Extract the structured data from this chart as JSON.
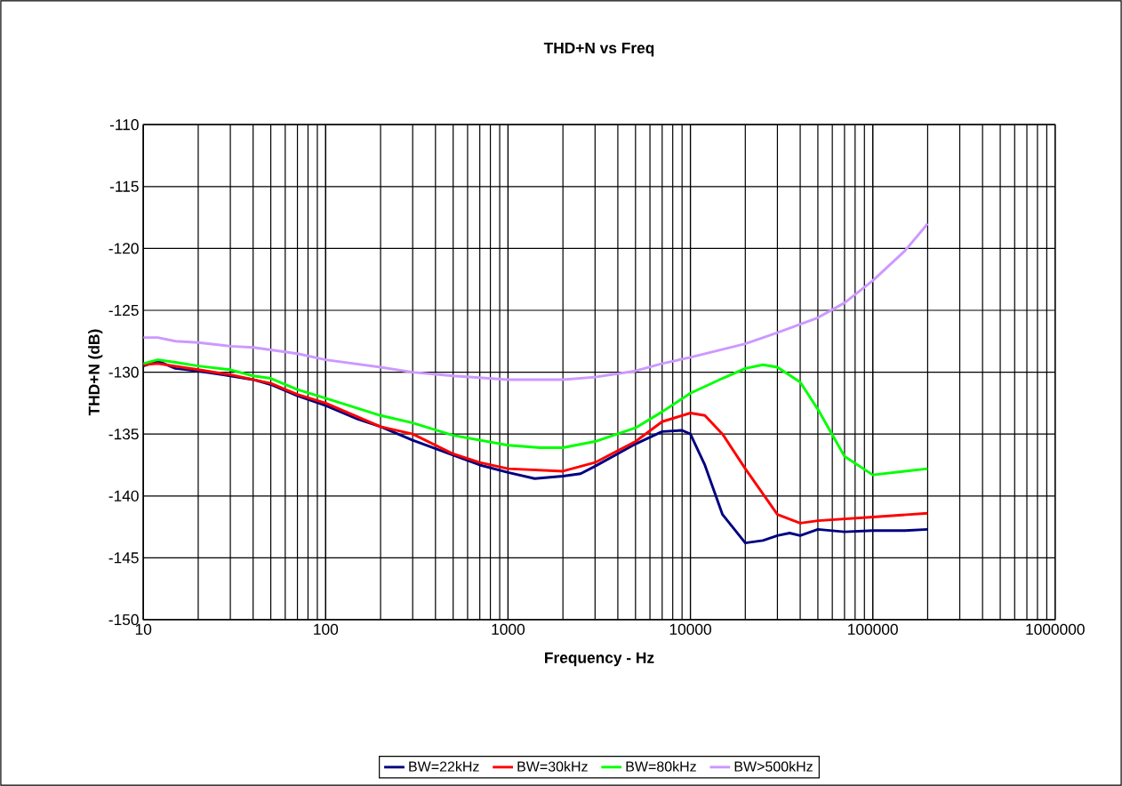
{
  "chart_data": {
    "type": "line",
    "title": "THD+N vs Freq",
    "xlabel": "Frequency  - Hz",
    "ylabel": "THD+N (dB)",
    "log": "x",
    "grid": true,
    "legend": "bottom",
    "xlim": [
      10,
      1000000
    ],
    "xticks": [
      10,
      100,
      1000,
      10000,
      100000,
      1000000
    ],
    "ylim": [
      -150,
      -110
    ],
    "yticks": [
      -150,
      -145,
      -140,
      -135,
      -130,
      -125,
      -120,
      -115,
      -110
    ],
    "series": [
      {
        "name": "BW=22kHz",
        "color": "#000080",
        "x": [
          10,
          12,
          15,
          20,
          30,
          40,
          50,
          70,
          100,
          150,
          200,
          300,
          500,
          700,
          1000,
          1400,
          2000,
          2500,
          3000,
          5000,
          7000,
          9000,
          10000,
          12000,
          15000,
          20000,
          25000,
          30000,
          35000,
          40000,
          50000,
          70000,
          100000,
          150000,
          200000
        ],
        "values": [
          -129.5,
          -129.1,
          -129.7,
          -129.9,
          -130.3,
          -130.6,
          -131.0,
          -131.9,
          -132.7,
          -133.8,
          -134.4,
          -135.5,
          -136.7,
          -137.5,
          -138.1,
          -138.6,
          -138.4,
          -138.2,
          -137.6,
          -135.8,
          -134.8,
          -134.7,
          -135.0,
          -137.5,
          -141.5,
          -143.8,
          -143.6,
          -143.2,
          -143.0,
          -143.2,
          -142.7,
          -142.9,
          -142.8,
          -142.8,
          -142.7
        ]
      },
      {
        "name": "BW=30kHz",
        "color": "#ff0000",
        "x": [
          10,
          12,
          20,
          30,
          50,
          70,
          100,
          200,
          300,
          500,
          700,
          1000,
          2000,
          3000,
          5000,
          7000,
          10000,
          12000,
          15000,
          20000,
          30000,
          40000,
          50000,
          100000,
          200000
        ],
        "values": [
          -129.4,
          -129.3,
          -129.8,
          -130.2,
          -130.9,
          -131.8,
          -132.5,
          -134.4,
          -135.0,
          -136.6,
          -137.3,
          -137.8,
          -138.0,
          -137.3,
          -135.6,
          -134.0,
          -133.3,
          -133.5,
          -135.0,
          -137.8,
          -141.5,
          -142.2,
          -142.0,
          -141.7,
          -141.4
        ]
      },
      {
        "name": "BW=80kHz",
        "color": "#00ff00",
        "x": [
          10,
          12,
          15,
          20,
          30,
          40,
          50,
          70,
          100,
          200,
          300,
          500,
          1000,
          1500,
          2000,
          3000,
          5000,
          7000,
          10000,
          15000,
          20000,
          25000,
          30000,
          40000,
          50000,
          70000,
          100000,
          150000,
          200000
        ],
        "values": [
          -129.3,
          -129.0,
          -129.2,
          -129.5,
          -129.8,
          -130.3,
          -130.5,
          -131.4,
          -132.1,
          -133.5,
          -134.1,
          -135.1,
          -135.9,
          -136.1,
          -136.1,
          -135.6,
          -134.5,
          -133.2,
          -131.7,
          -130.5,
          -129.7,
          -129.4,
          -129.6,
          -130.8,
          -133.0,
          -136.8,
          -138.3,
          -138.0,
          -137.8
        ]
      },
      {
        "name": "BW>500kHz",
        "color": "#cc99ff",
        "x": [
          10,
          12,
          15,
          20,
          30,
          40,
          50,
          70,
          100,
          200,
          300,
          500,
          1000,
          2000,
          3000,
          5000,
          7000,
          10000,
          20000,
          30000,
          50000,
          70000,
          100000,
          150000,
          200000
        ],
        "values": [
          -127.2,
          -127.2,
          -127.5,
          -127.6,
          -127.9,
          -128.0,
          -128.2,
          -128.5,
          -129.0,
          -129.6,
          -130.0,
          -130.3,
          -130.6,
          -130.6,
          -130.4,
          -129.9,
          -129.3,
          -128.8,
          -127.7,
          -126.8,
          -125.6,
          -124.4,
          -122.6,
          -120.2,
          -118.0
        ]
      }
    ]
  }
}
